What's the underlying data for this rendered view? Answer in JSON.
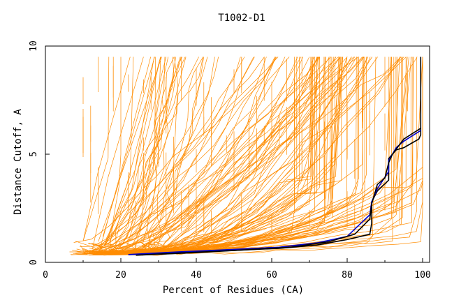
{
  "chart_data": {
    "type": "line",
    "title": "T1002-D1",
    "xlabel": "Percent of Residues (CA)",
    "ylabel": "Distance Cutoff, A",
    "xlim": [
      0,
      100
    ],
    "ylim": [
      0,
      10
    ],
    "x_ticks": [
      "0",
      "20",
      "40",
      "60",
      "80",
      "100"
    ],
    "y_ticks": [
      "0",
      "5",
      "10"
    ],
    "grid": false,
    "colors": {
      "background_models": "#ff8c00",
      "highlight_black": "#000000",
      "highlight_blue": "#0000cd"
    },
    "highlight_series": [
      {
        "color": "#000000",
        "points": [
          [
            22,
            0.35
          ],
          [
            35,
            0.45
          ],
          [
            50,
            0.55
          ],
          [
            62,
            0.65
          ],
          [
            72,
            0.8
          ],
          [
            80,
            1.05
          ],
          [
            86,
            1.3
          ],
          [
            86.5,
            1.8
          ],
          [
            86.5,
            2.8
          ],
          [
            88,
            3.3
          ],
          [
            91,
            3.8
          ],
          [
            91,
            4.8
          ],
          [
            93,
            5.2
          ],
          [
            95,
            5.3
          ],
          [
            97,
            5.5
          ],
          [
            99,
            5.7
          ],
          [
            99.5,
            5.9
          ],
          [
            99.5,
            9.5
          ]
        ]
      },
      {
        "color": "#0000cd",
        "points": [
          [
            22,
            0.36
          ],
          [
            35,
            0.48
          ],
          [
            50,
            0.6
          ],
          [
            62,
            0.7
          ],
          [
            72,
            0.9
          ],
          [
            80,
            1.2
          ],
          [
            86,
            2.2
          ],
          [
            86.5,
            2.8
          ],
          [
            88,
            3.4
          ],
          [
            91,
            4.2
          ],
          [
            91,
            4.7
          ],
          [
            93,
            5.3
          ],
          [
            95,
            5.6
          ],
          [
            99.5,
            6.1
          ]
        ]
      },
      {
        "color": "#000000",
        "points": [
          [
            24,
            0.33
          ],
          [
            40,
            0.45
          ],
          [
            55,
            0.6
          ],
          [
            65,
            0.7
          ],
          [
            75,
            0.95
          ],
          [
            82,
            1.3
          ],
          [
            86,
            2.0
          ],
          [
            86.5,
            2.7
          ],
          [
            88,
            3.6
          ],
          [
            90,
            3.9
          ],
          [
            91,
            4.6
          ],
          [
            92,
            5.0
          ],
          [
            95,
            5.7
          ],
          [
            99.5,
            6.2
          ]
        ]
      }
    ]
  }
}
